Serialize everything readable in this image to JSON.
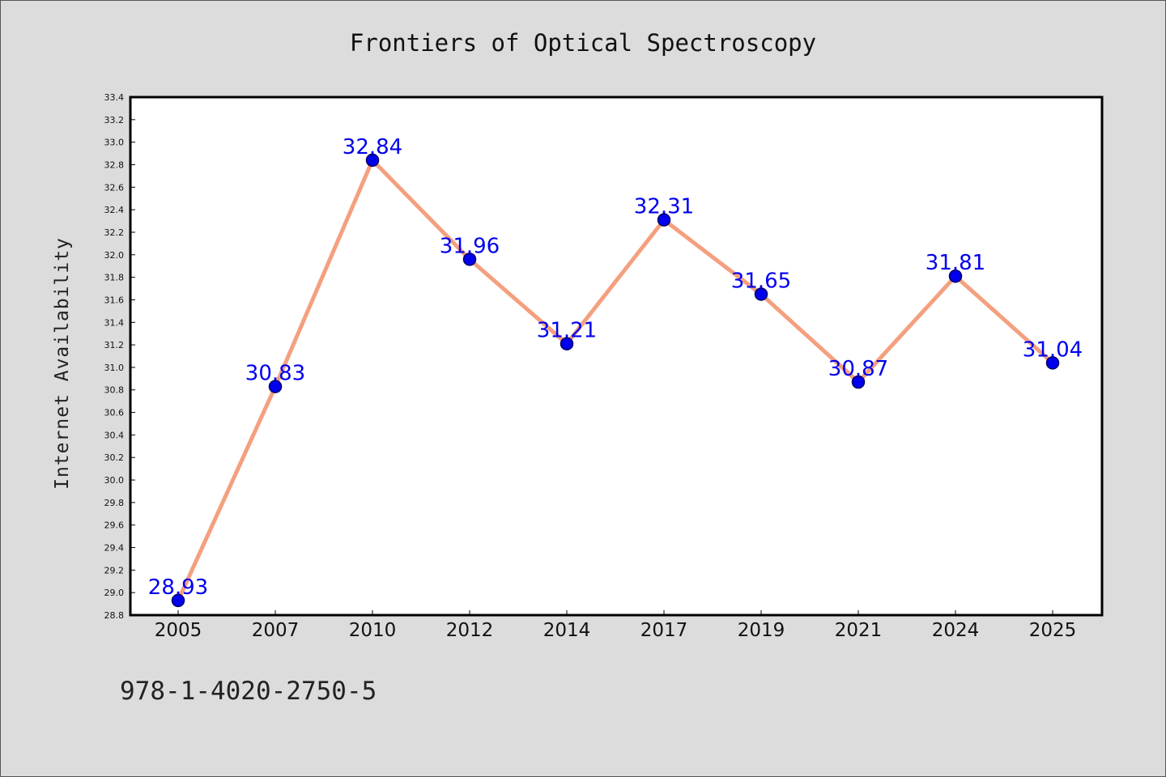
{
  "chart_data": {
    "type": "line",
    "title": "Frontiers of Optical Spectroscopy",
    "xlabel": "",
    "ylabel": "Internet Availability",
    "categories": [
      "2005",
      "2007",
      "2010",
      "2012",
      "2014",
      "2017",
      "2019",
      "2021",
      "2024",
      "2025"
    ],
    "series": [
      {
        "values": [
          28.93,
          30.83,
          32.84,
          31.96,
          31.21,
          32.31,
          31.65,
          30.87,
          31.81,
          31.04
        ],
        "data_labels": [
          "28.93",
          "30.83",
          "32.84",
          "31.96",
          "31.21",
          "32.31",
          "31.65",
          "30.87",
          "31.81",
          "31.04"
        ]
      }
    ],
    "ylim": [
      28.8,
      33.4
    ],
    "yticks": [
      "28.8",
      "29.0",
      "29.2",
      "29.4",
      "29.6",
      "29.8",
      "30.0",
      "30.2",
      "30.4",
      "30.6",
      "30.8",
      "31.0",
      "31.2",
      "31.4",
      "31.6",
      "31.8",
      "32.0",
      "32.2",
      "32.4",
      "32.6",
      "32.8",
      "33.0",
      "33.2",
      "33.4"
    ],
    "grid": false,
    "legend": "none",
    "colors": {
      "line": "#f4a07f",
      "marker": "#0000ee",
      "marker_edge": "#000066",
      "data_label": "#0000ee",
      "background": "#dcdcdc",
      "plot_background": "#ffffff"
    }
  },
  "footer": {
    "isbn": "978-1-4020-2750-5"
  }
}
